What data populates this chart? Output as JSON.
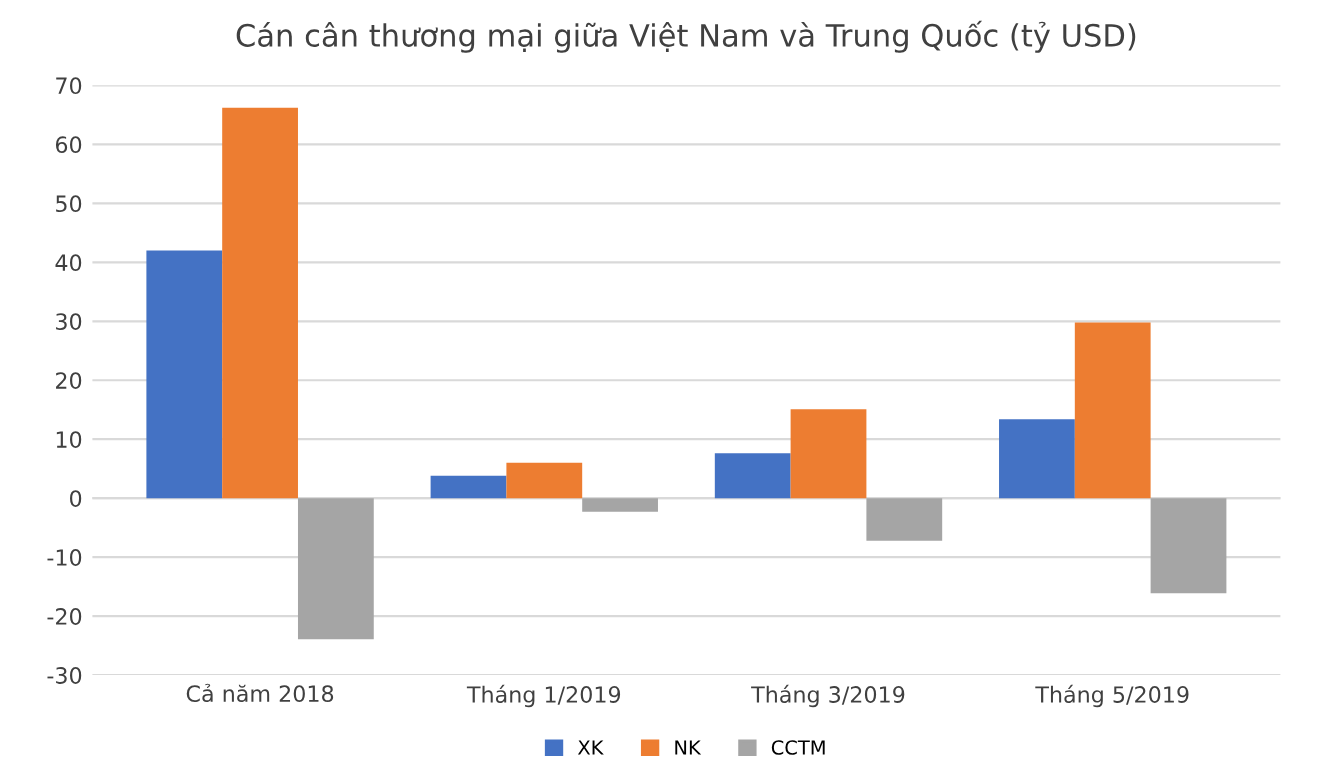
{
  "chart_data": {
    "type": "bar",
    "title": "Cán cân thương mại giữa Việt Nam và Trung Quốc (tỷ USD)",
    "categories": [
      "Cả năm 2018",
      "Tháng 1/2019",
      "Tháng 3/2019",
      "Tháng 5/2019"
    ],
    "series": [
      {
        "name": "XK",
        "color": "#4472c4",
        "values": [
          42.0,
          3.8,
          7.6,
          13.4
        ]
      },
      {
        "name": "NK",
        "color": "#ed7d31",
        "values": [
          66.2,
          6.0,
          15.1,
          29.8
        ]
      },
      {
        "name": "CCTM",
        "color": "#a5a5a5",
        "values": [
          -23.9,
          -2.3,
          -7.2,
          -16.1
        ]
      }
    ],
    "ylim": [
      -30,
      70
    ],
    "yticks": [
      -30,
      -20,
      -10,
      0,
      10,
      20,
      30,
      40,
      50,
      60,
      70
    ],
    "grid": "y",
    "legend": "bottom"
  }
}
